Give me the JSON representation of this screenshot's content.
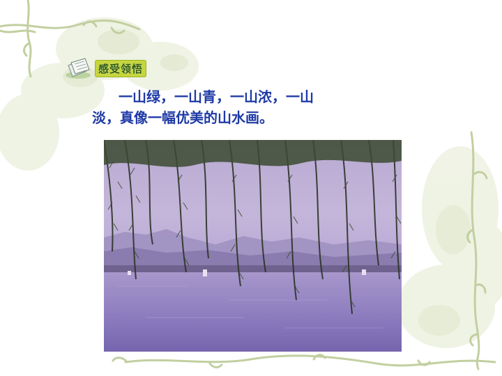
{
  "header": {
    "label": "感受领悟",
    "icon": "papers-icon"
  },
  "body_text": {
    "line1": "一山绿，一山青，一山浓，一山",
    "line2": "淡，真像一幅优美的山水画。"
  },
  "photo": {
    "subject": "lake-with-willow-branches"
  },
  "colors": {
    "text": "#1f3aa6",
    "label_bg": "#c6d63a",
    "decor": "#c9d6a7"
  }
}
